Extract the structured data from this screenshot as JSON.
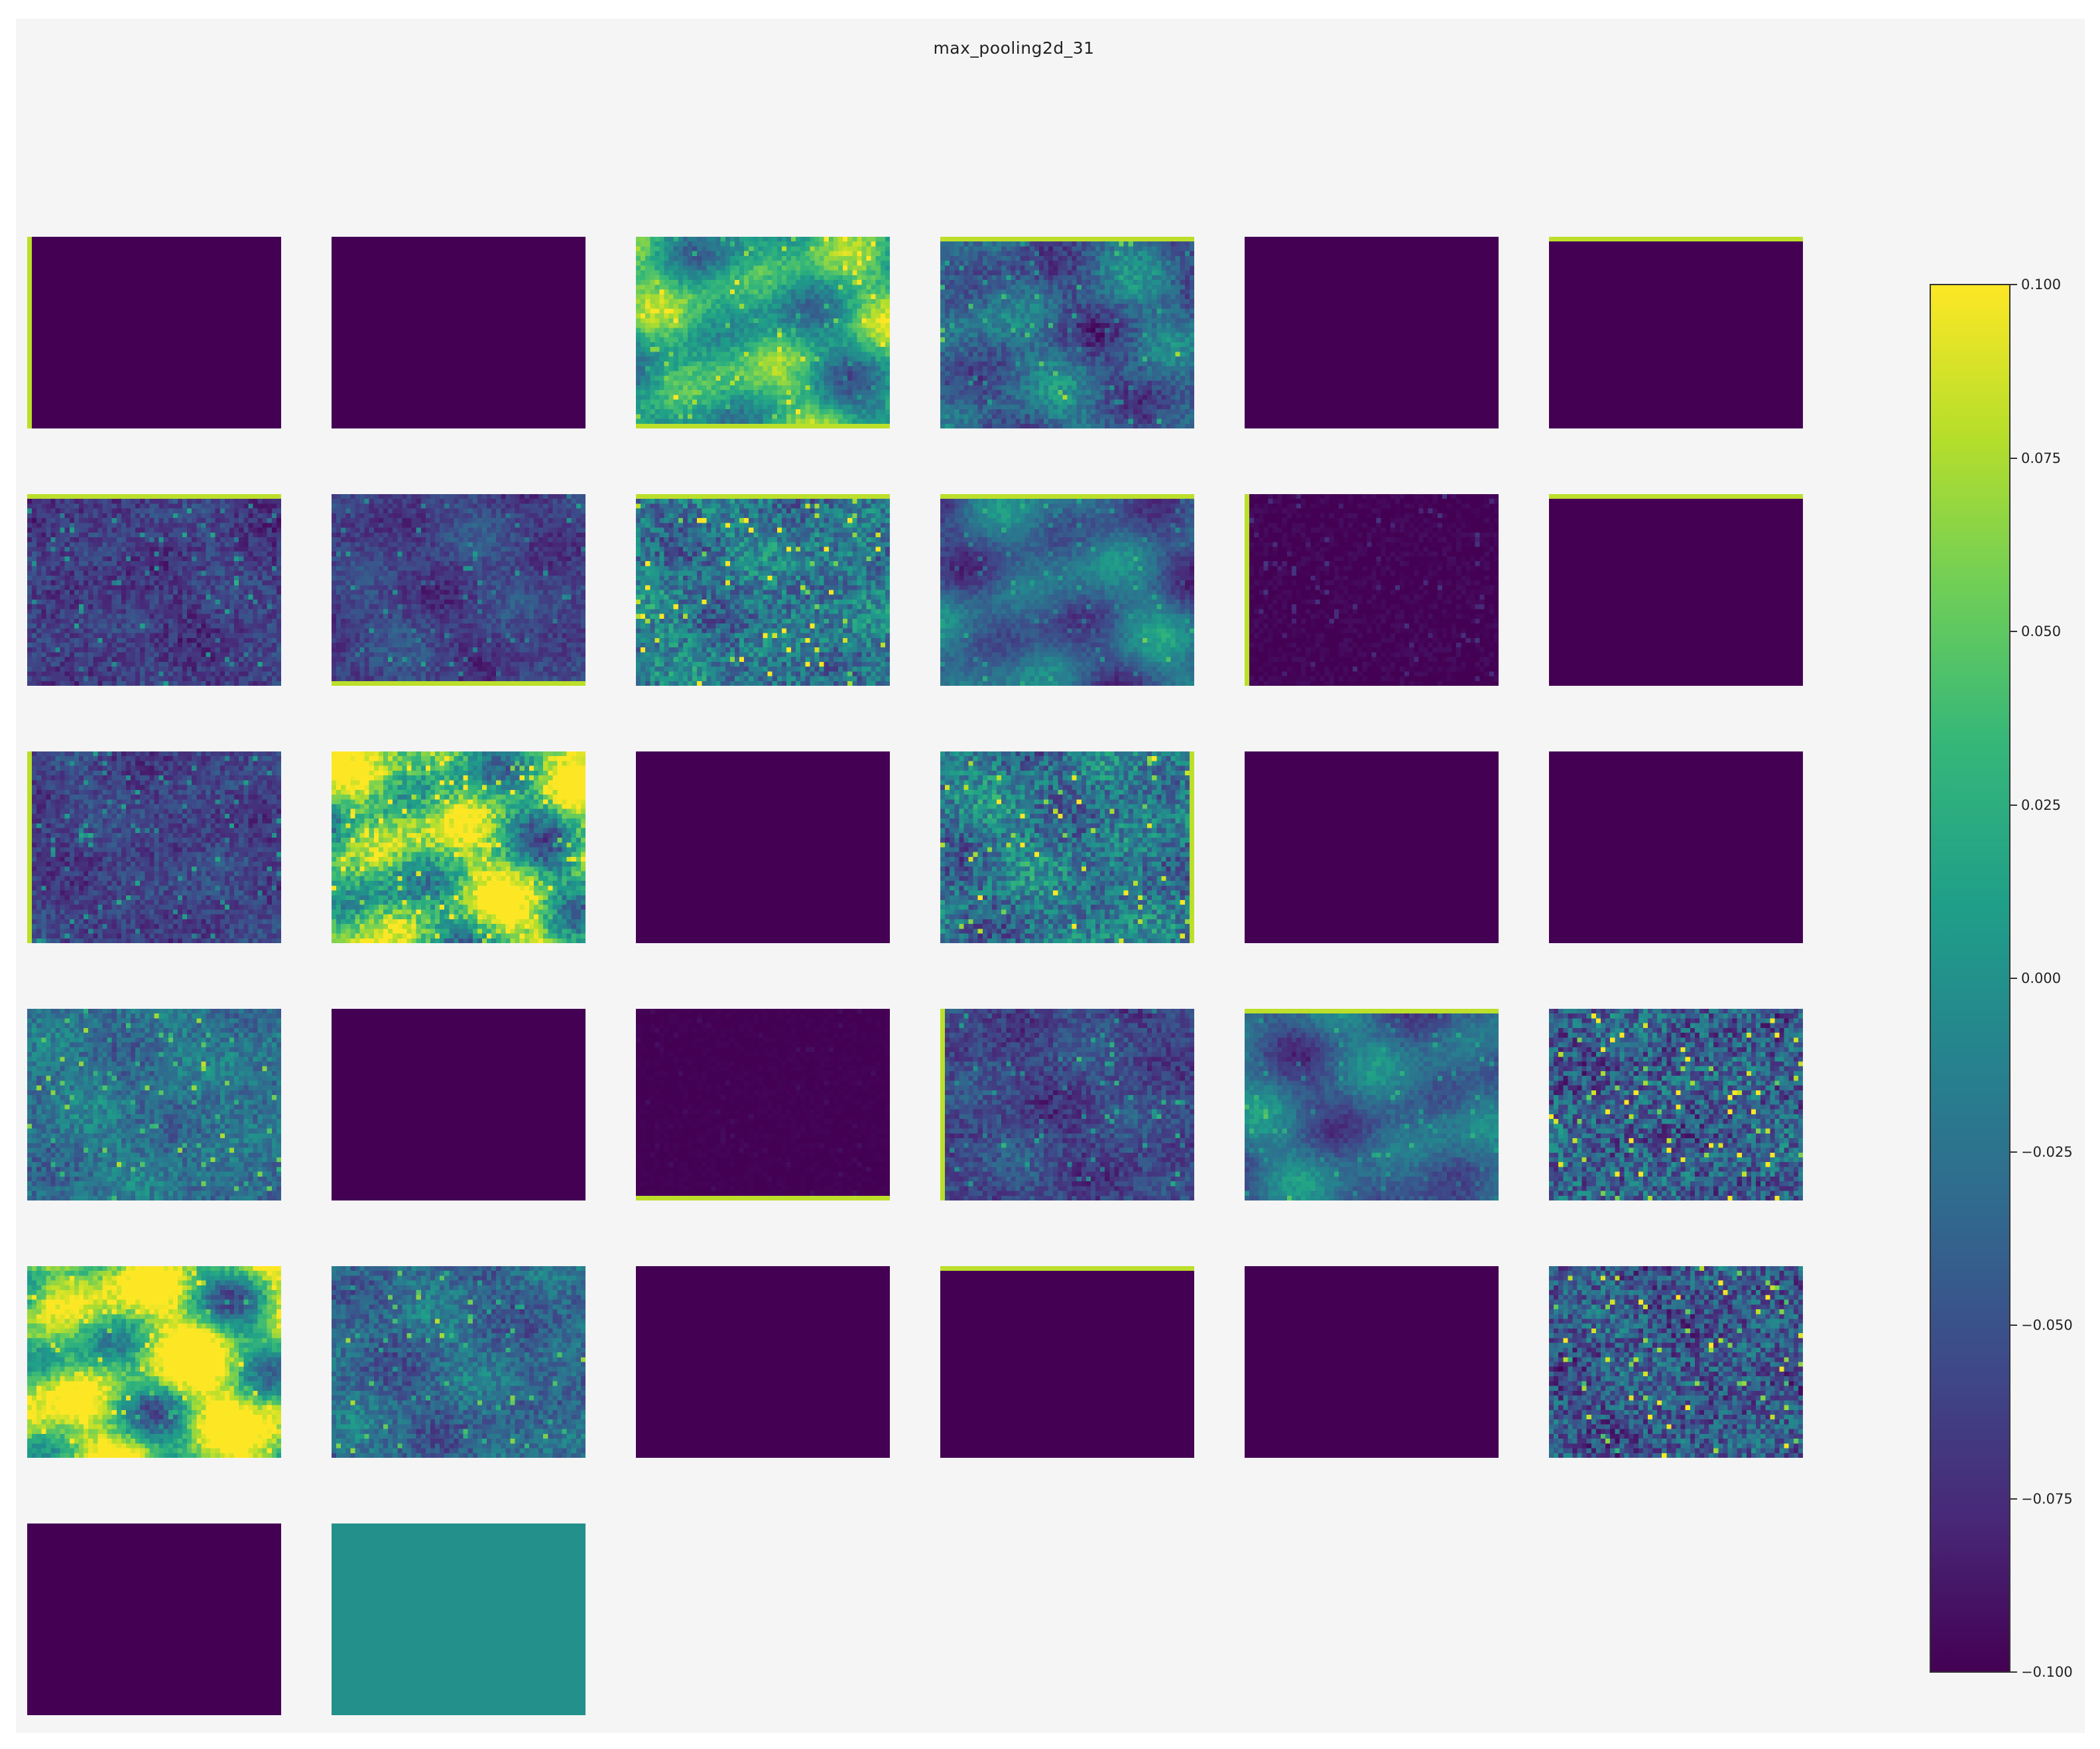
{
  "chart_data": {
    "type": "heatmap",
    "title": "max_pooling2d_31",
    "grid": {
      "rows": 6,
      "cols": 6,
      "panel_count": 32
    },
    "colormap": "viridis",
    "colorbar": {
      "min": -0.1,
      "max": 0.1,
      "ticks": [
        "0.100",
        "0.075",
        "0.050",
        "0.025",
        "0.000",
        "−0.025",
        "−0.050",
        "−0.075",
        "−0.100"
      ]
    },
    "panels": [
      {
        "base": 0.0,
        "noise": 0.0,
        "blob": 0.0,
        "edge": "left"
      },
      {
        "base": 0.0,
        "noise": 0.0,
        "blob": 0.0,
        "edge": ""
      },
      {
        "base": 0.6,
        "noise": 0.08,
        "blob": 0.25,
        "edge": "bottom"
      },
      {
        "base": 0.32,
        "noise": 0.1,
        "blob": 0.15,
        "edge": "top"
      },
      {
        "base": 0.0,
        "noise": 0.0,
        "blob": 0.0,
        "edge": ""
      },
      {
        "base": 0.0,
        "noise": 0.0,
        "blob": 0.0,
        "edge": "top"
      },
      {
        "base": 0.18,
        "noise": 0.1,
        "blob": 0.04,
        "edge": "top"
      },
      {
        "base": 0.2,
        "noise": 0.08,
        "blob": 0.06,
        "edge": "bottom"
      },
      {
        "base": 0.4,
        "noise": 0.18,
        "blob": 0.08,
        "edge": "top"
      },
      {
        "base": 0.33,
        "noise": 0.06,
        "blob": 0.18,
        "edge": "top"
      },
      {
        "base": 0.0,
        "noise": 0.04,
        "blob": 0.0,
        "edge": "left"
      },
      {
        "base": 0.0,
        "noise": 0.0,
        "blob": 0.0,
        "edge": "top"
      },
      {
        "base": 0.2,
        "noise": 0.1,
        "blob": 0.04,
        "edge": "left"
      },
      {
        "base": 0.72,
        "noise": 0.14,
        "blob": 0.35,
        "edge": ""
      },
      {
        "base": 0.0,
        "noise": 0.0,
        "blob": 0.0,
        "edge": ""
      },
      {
        "base": 0.4,
        "noise": 0.18,
        "blob": 0.1,
        "edge": "right"
      },
      {
        "base": 0.0,
        "noise": 0.0,
        "blob": 0.0,
        "edge": ""
      },
      {
        "base": 0.0,
        "noise": 0.0,
        "blob": 0.0,
        "edge": ""
      },
      {
        "base": 0.38,
        "noise": 0.12,
        "blob": 0.06,
        "edge": ""
      },
      {
        "base": 0.0,
        "noise": 0.0,
        "blob": 0.0,
        "edge": ""
      },
      {
        "base": 0.0,
        "noise": 0.01,
        "blob": 0.0,
        "edge": "bottom"
      },
      {
        "base": 0.22,
        "noise": 0.1,
        "blob": 0.06,
        "edge": "left"
      },
      {
        "base": 0.34,
        "noise": 0.06,
        "blob": 0.16,
        "edge": "top"
      },
      {
        "base": 0.3,
        "noise": 0.22,
        "blob": 0.05,
        "edge": ""
      },
      {
        "base": 0.8,
        "noise": 0.1,
        "blob": 0.4,
        "edge": ""
      },
      {
        "base": 0.34,
        "noise": 0.12,
        "blob": 0.08,
        "edge": ""
      },
      {
        "base": 0.0,
        "noise": 0.0,
        "blob": 0.0,
        "edge": ""
      },
      {
        "base": 0.0,
        "noise": 0.0,
        "blob": 0.0,
        "edge": "top"
      },
      {
        "base": 0.0,
        "noise": 0.0,
        "blob": 0.0,
        "edge": ""
      },
      {
        "base": 0.28,
        "noise": 0.2,
        "blob": 0.05,
        "edge": ""
      },
      {
        "base": 0.0,
        "noise": 0.0,
        "blob": 0.0,
        "edge": ""
      },
      {
        "base": 0.5,
        "noise": 0.0,
        "blob": 0.0,
        "edge": ""
      }
    ]
  }
}
